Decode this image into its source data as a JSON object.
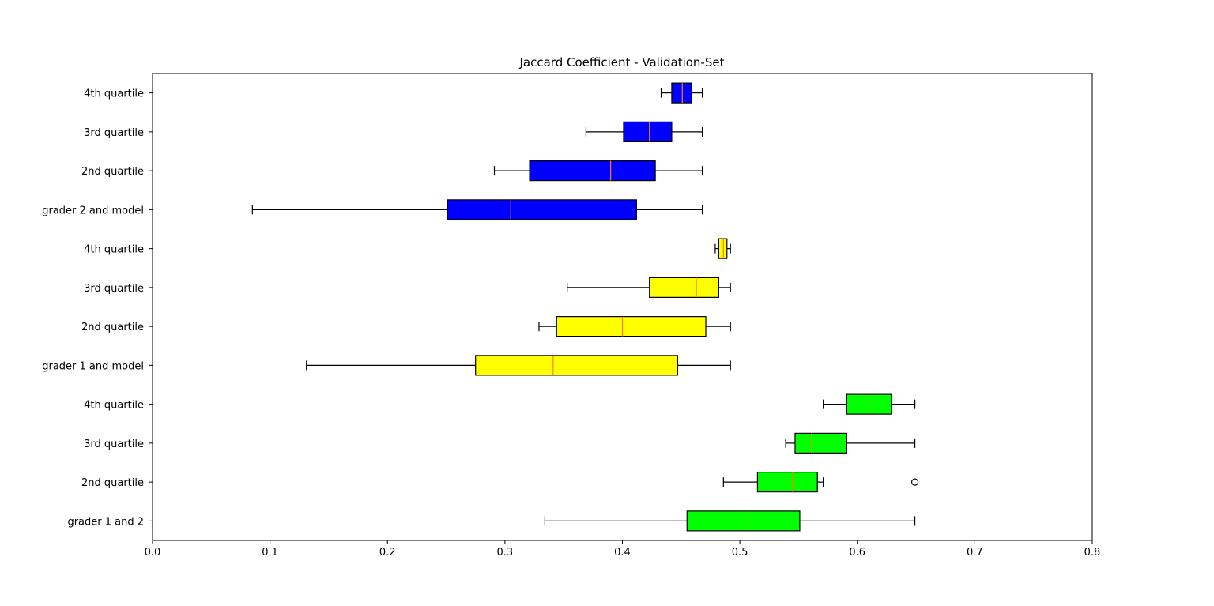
{
  "chart_data": {
    "type": "boxplot",
    "orientation": "horizontal",
    "title": "Jaccard Coefficient - Validation-Set",
    "xlabel": "",
    "ylabel": "",
    "xlim": [
      0.0,
      0.8
    ],
    "xticks": [
      "0.0",
      "0.1",
      "0.2",
      "0.3",
      "0.4",
      "0.5",
      "0.6",
      "0.7",
      "0.8"
    ],
    "grid": false,
    "legend": "none",
    "median_color": "#ff7f0e",
    "boxes": [
      {
        "label": "4th quartile",
        "group": "grader 2 and model",
        "color": "#0000ff",
        "whislo": 0.433,
        "q1": 0.442,
        "med": 0.451,
        "q3": 0.459,
        "whishi": 0.468,
        "fliers": []
      },
      {
        "label": "3rd quartile",
        "group": "grader 2 and model",
        "color": "#0000ff",
        "whislo": 0.369,
        "q1": 0.401,
        "med": 0.423,
        "q3": 0.442,
        "whishi": 0.468,
        "fliers": []
      },
      {
        "label": "2nd quartile",
        "group": "grader 2 and model",
        "color": "#0000ff",
        "whislo": 0.291,
        "q1": 0.321,
        "med": 0.39,
        "q3": 0.428,
        "whishi": 0.468,
        "fliers": []
      },
      {
        "label": "grader 2 and model",
        "group": "grader 2 and model",
        "color": "#0000ff",
        "whislo": 0.085,
        "q1": 0.251,
        "med": 0.305,
        "q3": 0.412,
        "whishi": 0.468,
        "fliers": []
      },
      {
        "label": "4th quartile",
        "group": "grader 1 and model",
        "color": "#ffff00",
        "whislo": 0.479,
        "q1": 0.482,
        "med": 0.486,
        "q3": 0.489,
        "whishi": 0.492,
        "fliers": []
      },
      {
        "label": "3rd quartile",
        "group": "grader 1 and model",
        "color": "#ffff00",
        "whislo": 0.353,
        "q1": 0.423,
        "med": 0.463,
        "q3": 0.482,
        "whishi": 0.492,
        "fliers": []
      },
      {
        "label": "2nd quartile",
        "group": "grader 1 and model",
        "color": "#ffff00",
        "whislo": 0.329,
        "q1": 0.344,
        "med": 0.4,
        "q3": 0.471,
        "whishi": 0.492,
        "fliers": []
      },
      {
        "label": "grader 1 and model",
        "group": "grader 1 and model",
        "color": "#ffff00",
        "whislo": 0.131,
        "q1": 0.275,
        "med": 0.341,
        "q3": 0.447,
        "whishi": 0.492,
        "fliers": []
      },
      {
        "label": "4th quartile",
        "group": "grader 1 and 2",
        "color": "#00ff00",
        "whislo": 0.571,
        "q1": 0.591,
        "med": 0.61,
        "q3": 0.629,
        "whishi": 0.649,
        "fliers": []
      },
      {
        "label": "3rd quartile",
        "group": "grader 1 and 2",
        "color": "#00ff00",
        "whislo": 0.539,
        "q1": 0.547,
        "med": 0.561,
        "q3": 0.591,
        "whishi": 0.649,
        "fliers": []
      },
      {
        "label": "2nd quartile",
        "group": "grader 1 and 2",
        "color": "#00ff00",
        "whislo": 0.486,
        "q1": 0.515,
        "med": 0.545,
        "q3": 0.566,
        "whishi": 0.571,
        "fliers": [
          0.649
        ]
      },
      {
        "label": "grader 1 and 2",
        "group": "grader 1 and 2",
        "color": "#00ff00",
        "whislo": 0.334,
        "q1": 0.455,
        "med": 0.507,
        "q3": 0.551,
        "whishi": 0.649,
        "fliers": []
      }
    ]
  }
}
